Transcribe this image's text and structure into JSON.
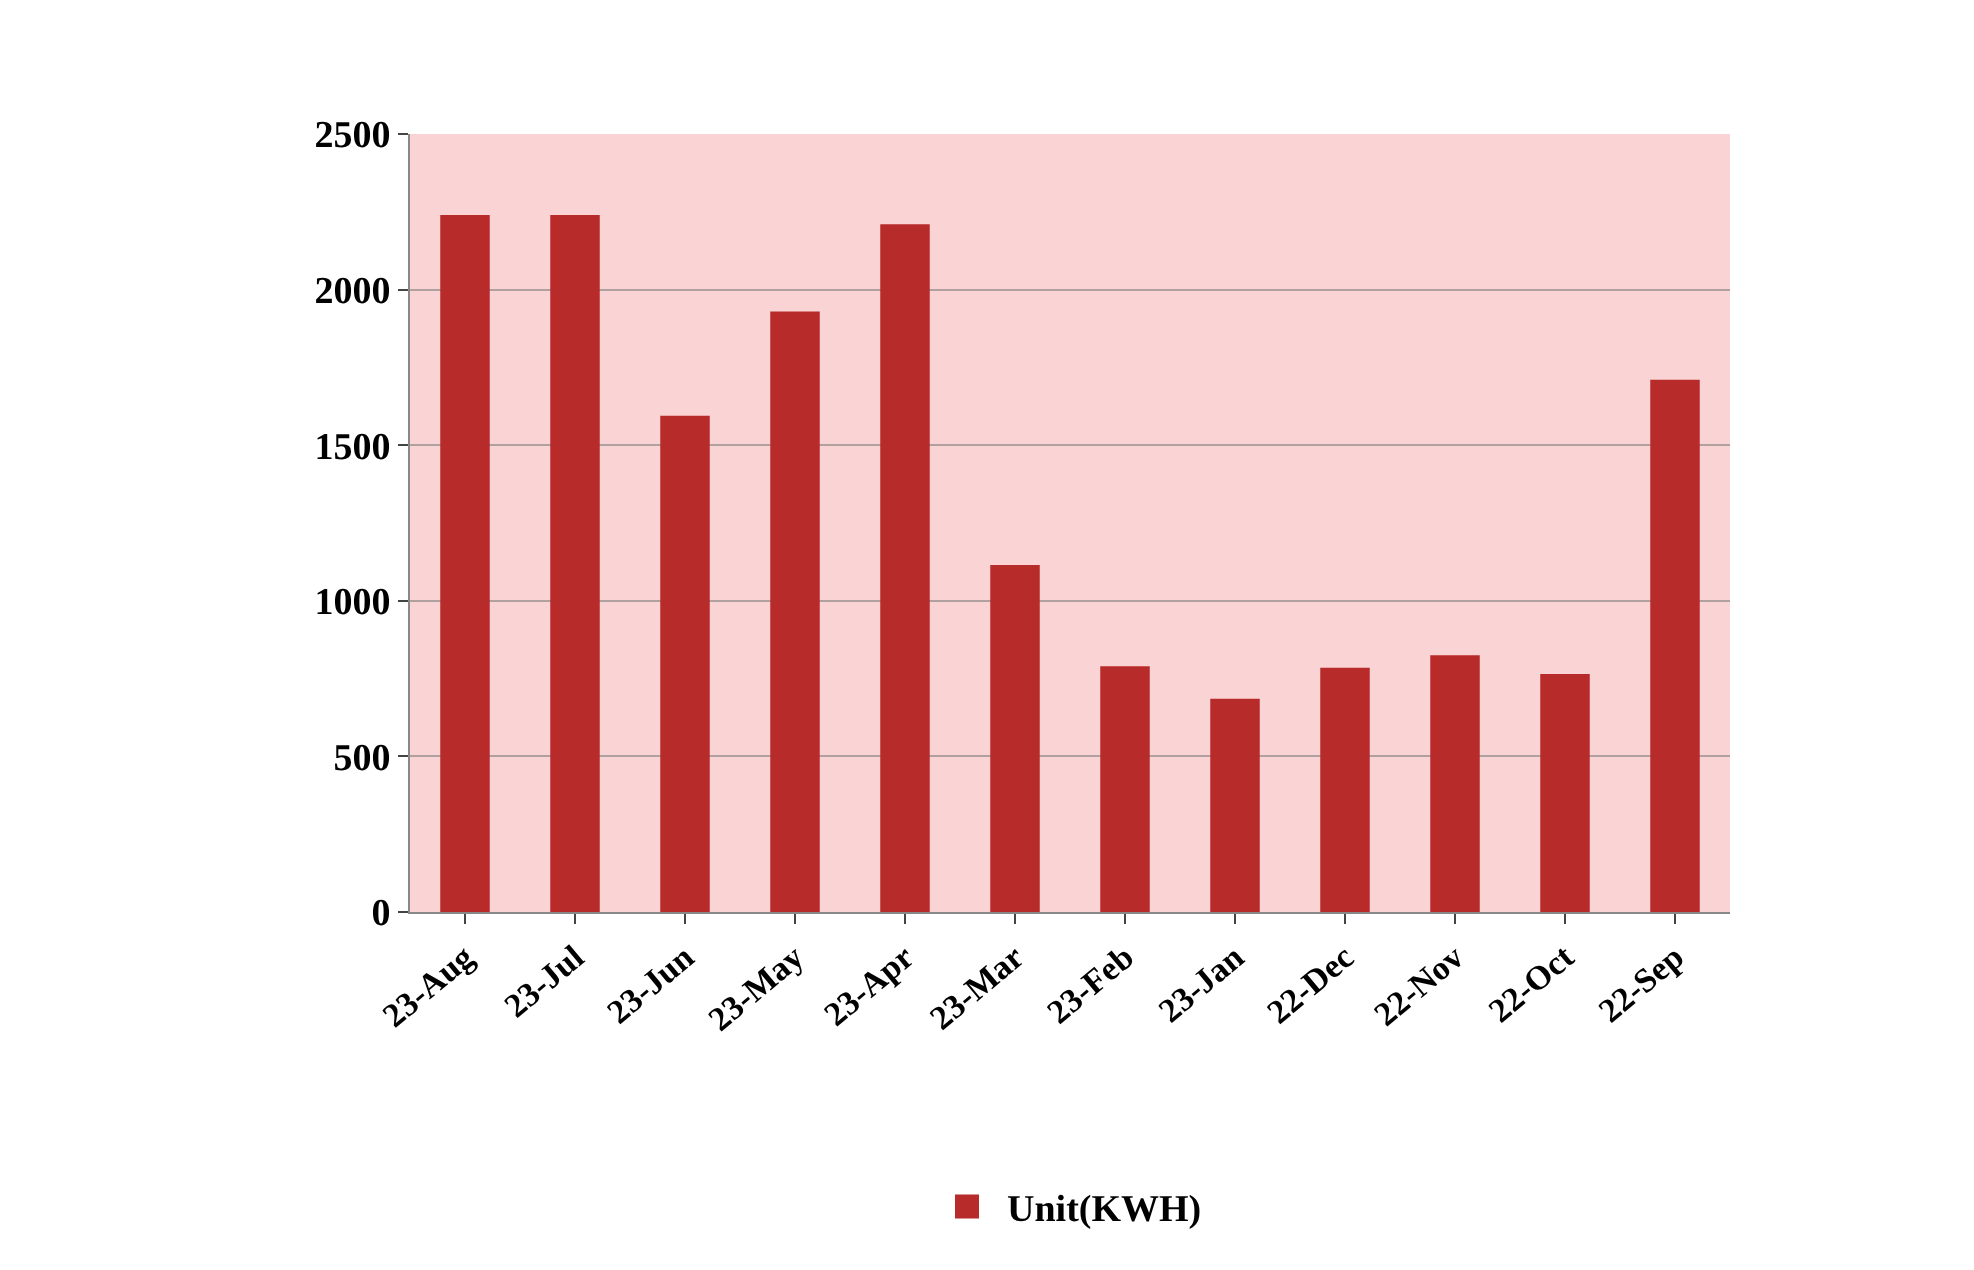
{
  "chart_data": {
    "type": "bar",
    "categories": [
      "23-Aug",
      "23-Jul",
      "23-Jun",
      "23-May",
      "23-Apr",
      "23-Mar",
      "23-Feb",
      "23-Jan",
      "22-Dec",
      "22-Nov",
      "22-Oct",
      "22-Sep"
    ],
    "series": [
      {
        "name": "Unit(KWH)",
        "color": "#b82b2b",
        "values": [
          2240,
          2240,
          1595,
          1930,
          2210,
          1115,
          790,
          685,
          785,
          825,
          765,
          1710
        ]
      }
    ],
    "ylim": [
      0,
      2500
    ],
    "yticks": [
      0,
      500,
      1000,
      1500,
      2000,
      2500
    ],
    "grid": "y",
    "legend": "bottom"
  }
}
